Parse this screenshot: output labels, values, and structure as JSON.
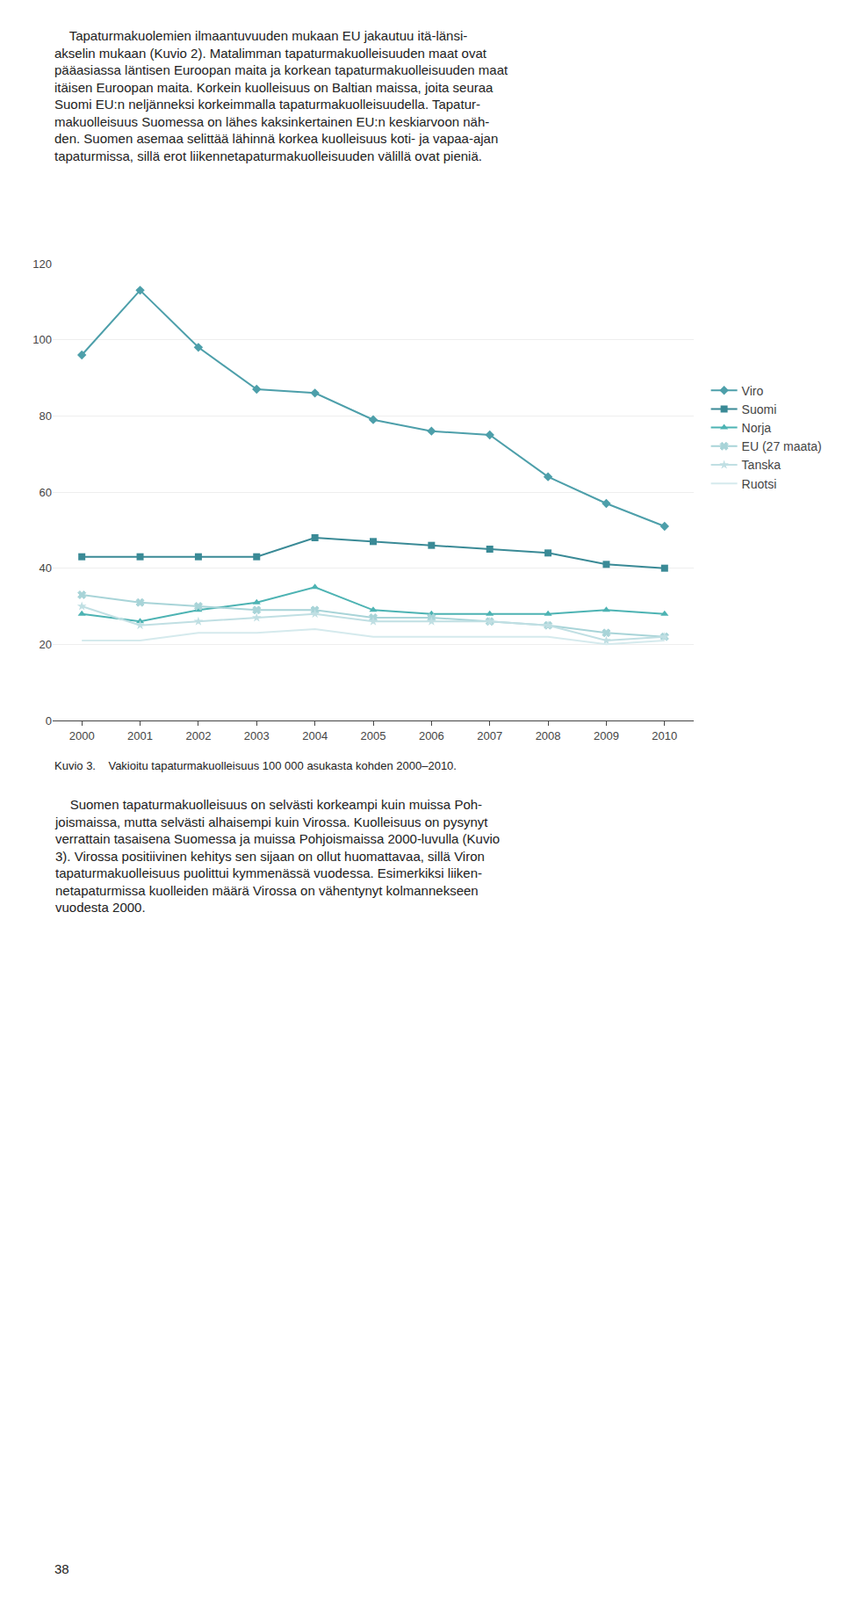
{
  "chart_data": {
    "type": "line",
    "x": [
      2000,
      2001,
      2002,
      2003,
      2004,
      2005,
      2006,
      2007,
      2008,
      2009,
      2010
    ],
    "series": [
      {
        "name": "Viro",
        "color": "#4d9faa",
        "marker": "diamond",
        "values": [
          96,
          113,
          98,
          87,
          86,
          79,
          76,
          75,
          64,
          57,
          51
        ]
      },
      {
        "name": "Suomi",
        "color": "#3a8a96",
        "marker": "square",
        "values": [
          43,
          43,
          43,
          43,
          48,
          47,
          46,
          45,
          44,
          41,
          40
        ]
      },
      {
        "name": "Norja",
        "color": "#4db3b3",
        "marker": "triangle-up",
        "values": [
          28,
          26,
          29,
          31,
          35,
          29,
          28,
          28,
          28,
          29,
          28
        ]
      },
      {
        "name": "EU (27 maata)",
        "color": "#a8d4d8",
        "marker": "x",
        "values": [
          33,
          31,
          30,
          29,
          29,
          27,
          27,
          26,
          25,
          23,
          22
        ]
      },
      {
        "name": "Tanska",
        "color": "#c0dfe3",
        "marker": "star",
        "values": [
          30,
          25,
          26,
          27,
          28,
          26,
          26,
          26,
          25,
          21,
          22
        ]
      },
      {
        "name": "Ruotsi",
        "color": "#d5eaed",
        "marker": "none",
        "values": [
          21,
          21,
          23,
          23,
          24,
          22,
          22,
          22,
          22,
          20,
          21
        ]
      }
    ],
    "xlim": [
      1999.5,
      2010.5
    ],
    "xticks": [
      2000,
      2001,
      2002,
      2003,
      2004,
      2005,
      2006,
      2007,
      2008,
      2009,
      2010
    ],
    "ylim": [
      0,
      120
    ],
    "yticks": [
      0,
      20,
      40,
      60,
      80,
      100,
      120
    ],
    "grid": "y",
    "legend": "right",
    "annotations": [
      "    Tapaturmakuolemien ilmaantuvuuden mukaan EU jakautuu itä-länsi-\nakselin mukaan (Kuvio 2). Matalimman tapaturmakuolleisuuden maat ovat\npääasiassa läntisen Euroopan maita ja korkean tapaturmakuolleisuuden maat\nitäisen Euroopan maita. Korkein kuolleisuus on Baltian maissa, joita seuraa\nSuomi EU:n neljänneksi korkeimmalla tapaturmakuolleisuudella. Tapatur-\nmakuolleisuus Suomessa on lähes kaksinkertainen EU:n keskiarvoon näh-\nden. Suomen asemaa selittää lähinnä korkea kuolleisuus koti- ja vapaa-ajan\ntapaturmissa, sillä erot liikennetapaturmakuolleisuuden välillä ovat pieniä.",
      "Kuvio 3.    Vakioitu tapaturmakuolleisuus 100 000 asukasta kohden 2000–2010.",
      "    Suomen tapaturmakuolleisuus on selvästi korkeampi kuin muissa Poh-\njoismaissa, mutta selvästi alhaisempi kuin Virossa. Kuolleisuus on pysynyt\nverrattain tasaisena Suomessa ja muissa Pohjoismaissa 2000-luvulla (Kuvio\n3). Virossa positiivinen kehitys sen sijaan on ollut huomattavaa, sillä Viron\ntapaturmakuolleisuus puolittui kymmenässä vuodessa. Esimerkiksi liiken-\nnetapaturmissa kuolleiden määrä Virossa on vähentynyt kolmannekseen\nvuodesta 2000.",
      "38"
    ]
  }
}
